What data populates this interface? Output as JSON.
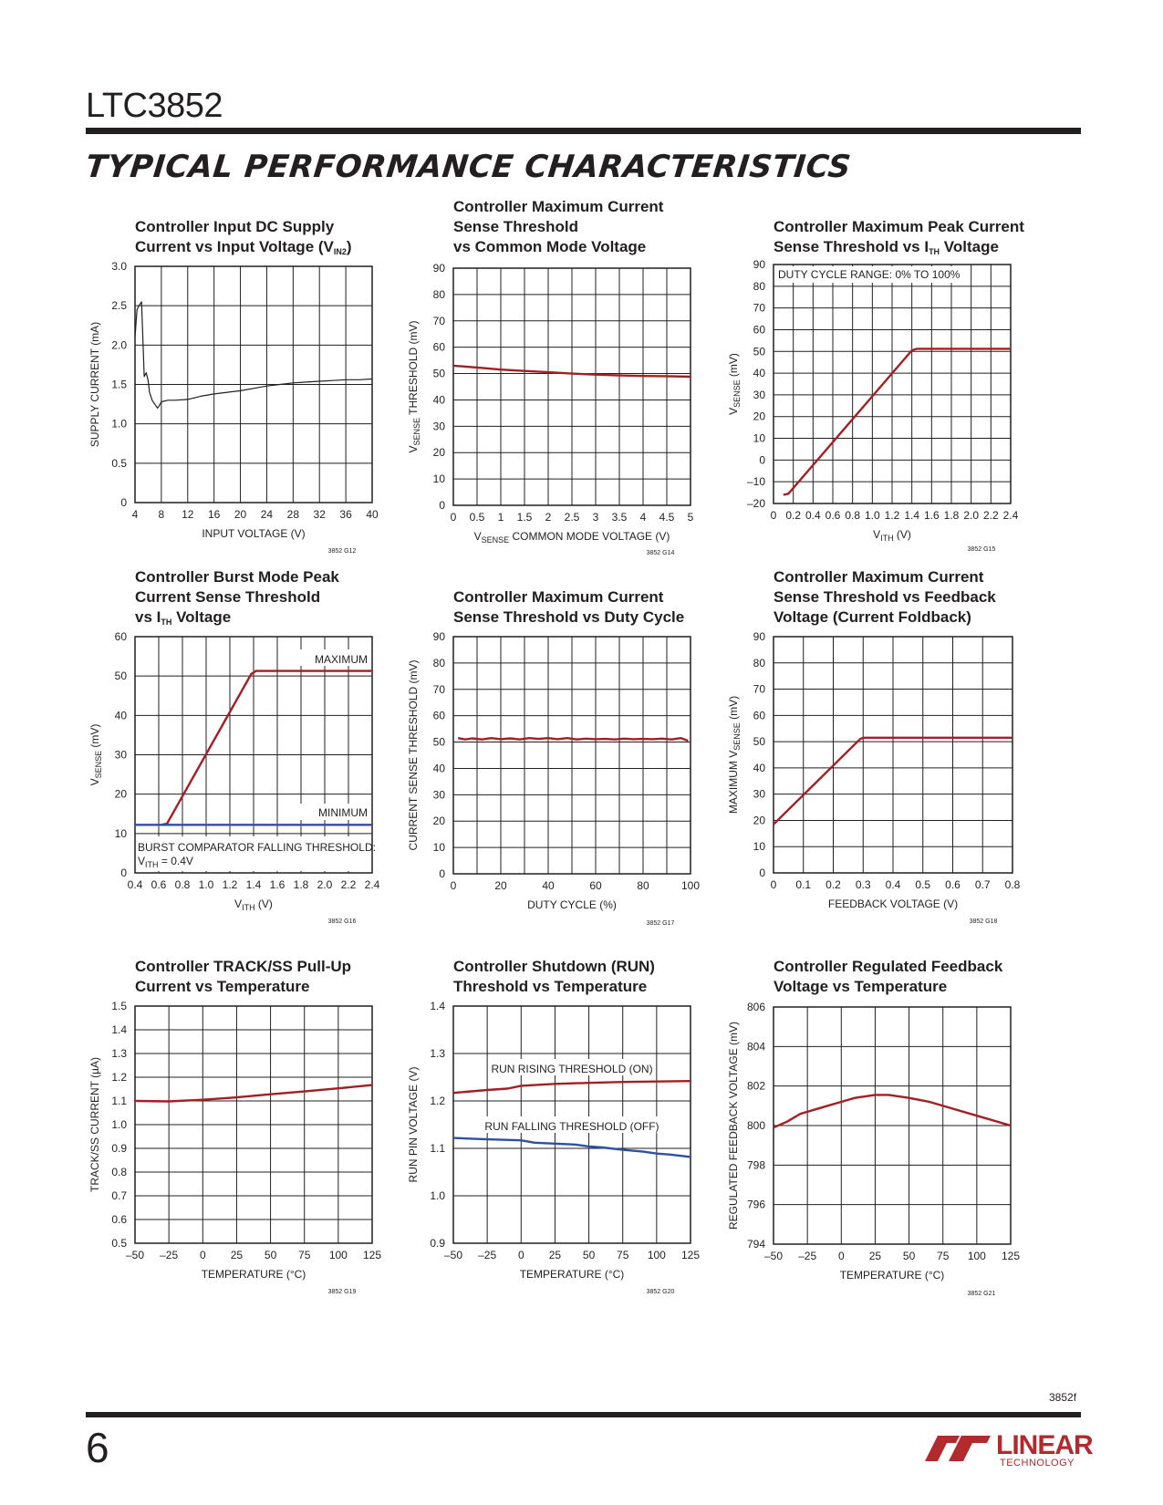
{
  "header": {
    "part_number": "LTC3852",
    "section_title": "TYPICAL PERFORMANCE CHARACTERISTICS"
  },
  "footer": {
    "page_number": "6",
    "doc_id": "3852f",
    "logo_text": "LINEAR",
    "logo_subtext": "TECHNOLOGY"
  },
  "colors": {
    "red": "#a31f24",
    "blue": "#2e4fa3",
    "black": "#231f20",
    "grid": "#231f20"
  },
  "chart_data": [
    {
      "id": "g12",
      "type": "line",
      "title_lines": [
        "Controller Input DC Supply",
        "Current vs Input Voltage (V",
        "IN2",
        ")"
      ],
      "xlabel": "INPUT VOLTAGE (V)",
      "ylabel": "SUPPLY CURRENT (mA)",
      "xlim": [
        4,
        40
      ],
      "ylim": [
        0,
        3.0
      ],
      "xticks": [
        "4",
        "8",
        "12",
        "16",
        "20",
        "24",
        "28",
        "32",
        "36",
        "40"
      ],
      "yticks": [
        "0",
        "0.5",
        "1.0",
        "1.5",
        "2.0",
        "2.5",
        "3.0"
      ],
      "xgrid": 9,
      "ygrid": 6,
      "fig_id": "3852 G12",
      "series": [
        {
          "color": "black",
          "x": [
            4,
            4.3,
            4.6,
            5.0,
            5.4,
            5.7,
            6.0,
            6.2,
            6.6,
            7.0,
            7.4,
            7.6,
            8,
            9,
            10,
            12,
            14,
            16,
            18,
            20,
            22,
            24,
            26,
            28,
            30,
            32,
            34,
            36,
            38,
            40
          ],
          "y": [
            2.1,
            2.45,
            2.5,
            2.55,
            1.6,
            1.65,
            1.55,
            1.4,
            1.3,
            1.25,
            1.2,
            1.22,
            1.28,
            1.3,
            1.3,
            1.31,
            1.35,
            1.38,
            1.4,
            1.42,
            1.45,
            1.48,
            1.5,
            1.52,
            1.53,
            1.54,
            1.55,
            1.56,
            1.56,
            1.57
          ]
        }
      ]
    },
    {
      "id": "g14",
      "type": "line",
      "title_lines": [
        "Controller Maximum Current",
        "Sense Threshold",
        "vs Common Mode Voltage"
      ],
      "xlabel_pre": "V",
      "xlabel_sub": "SENSE",
      "xlabel_post": " COMMON MODE VOLTAGE (V)",
      "ylabel_pre": "V",
      "ylabel_sub": "SENSE",
      "ylabel_post": " THRESHOLD (mV)",
      "xlim": [
        0,
        5
      ],
      "ylim": [
        0,
        90
      ],
      "xticks": [
        "0",
        "0.5",
        "1",
        "1.5",
        "2",
        "2.5",
        "3",
        "3.5",
        "4",
        "4.5",
        "5"
      ],
      "yticks": [
        "0",
        "10",
        "20",
        "30",
        "40",
        "50",
        "60",
        "70",
        "80",
        "90"
      ],
      "xgrid": 10,
      "ygrid": 9,
      "fig_id": "3852 G14",
      "series": [
        {
          "color": "red",
          "x": [
            0,
            0.5,
            1,
            1.5,
            2,
            2.5,
            3,
            3.5,
            4,
            4.5,
            5
          ],
          "y": [
            53,
            52.3,
            51.5,
            51,
            50.5,
            50,
            49.6,
            49.3,
            49.1,
            49,
            48.8
          ]
        }
      ]
    },
    {
      "id": "g15",
      "type": "line",
      "title_lines": [
        "Controller Maximum Peak Current",
        "Sense Threshold vs I",
        "TH",
        " Voltage"
      ],
      "xlabel_pre": "V",
      "xlabel_sub": "ITH",
      "xlabel_post": " (V)",
      "ylabel_pre": "V",
      "ylabel_sub": "SENSE",
      "ylabel_post": " (mV)",
      "xlim": [
        0,
        2.4
      ],
      "ylim": [
        -20,
        90
      ],
      "xticks": [
        "0",
        "0.2",
        "0.4",
        "0.6",
        "0.8",
        "1.0",
        "1.2",
        "1.4",
        "1.6",
        "1.8",
        "2.0",
        "2.2",
        "2.4"
      ],
      "yticks": [
        "–20",
        "–10",
        "0",
        "10",
        "20",
        "30",
        "40",
        "50",
        "60",
        "70",
        "80",
        "90"
      ],
      "xgrid": 12,
      "ygrid": 11,
      "fig_id": "3852 G15",
      "annotation": "DUTY CYCLE RANGE: 0% TO 100%",
      "series": [
        {
          "color": "red",
          "x": [
            0.1,
            0.15,
            1.4,
            1.45,
            2.4
          ],
          "y": [
            -16,
            -15.5,
            50.5,
            51.2,
            51.2
          ]
        }
      ]
    },
    {
      "id": "g16",
      "type": "line",
      "title_lines": [
        "Controller Burst Mode Peak",
        "Current Sense Threshold",
        "vs I",
        "TH",
        " Voltage"
      ],
      "xlabel_pre": "V",
      "xlabel_sub": "ITH",
      "xlabel_post": " (V)",
      "ylabel_pre": "V",
      "ylabel_sub": "SENSE",
      "ylabel_post": " (mV)",
      "xlim": [
        0.4,
        2.4
      ],
      "ylim": [
        0,
        60
      ],
      "xticks": [
        "0.4",
        "0.6",
        "0.8",
        "1.0",
        "1.2",
        "1.4",
        "1.6",
        "1.8",
        "2.0",
        "2.2",
        "2.4"
      ],
      "yticks": [
        "0",
        "10",
        "20",
        "30",
        "40",
        "50",
        "60"
      ],
      "xgrid": 10,
      "ygrid": 6,
      "fig_id": "3852 G16",
      "label_max": "MAXIMUM",
      "label_min": "MINIMUM",
      "annotation_line1": "BURST COMPARATOR FALLING THRESHOLD:",
      "annotation_pre": "V",
      "annotation_sub": "ITH",
      "annotation_post": " = 0.4V",
      "series": [
        {
          "color": "red",
          "x": [
            0.62,
            0.67,
            1.38,
            1.42,
            2.4
          ],
          "y": [
            12.2,
            12.5,
            50.5,
            51.3,
            51.3
          ]
        },
        {
          "color": "blue",
          "x": [
            0.4,
            2.4
          ],
          "y": [
            12.2,
            12.2
          ]
        }
      ]
    },
    {
      "id": "g17",
      "type": "line",
      "title_lines": [
        "Controller Maximum Current",
        "Sense Threshold vs Duty Cycle"
      ],
      "xlabel": "DUTY CYCLE (%)",
      "ylabel": "CURRENT SENSE THRESHOLD (mV)",
      "xlim": [
        0,
        100
      ],
      "ylim": [
        0,
        90
      ],
      "xticks": [
        "0",
        "20",
        "40",
        "60",
        "80",
        "100"
      ],
      "yticks": [
        "0",
        "10",
        "20",
        "30",
        "40",
        "50",
        "60",
        "70",
        "80",
        "90"
      ],
      "xgrid": 10,
      "ygrid": 9,
      "fig_id": "3852 G17",
      "series": [
        {
          "color": "red",
          "x": [
            2,
            5,
            8,
            12,
            16,
            20,
            24,
            28,
            32,
            36,
            40,
            44,
            48,
            52,
            56,
            60,
            64,
            68,
            72,
            76,
            80,
            84,
            88,
            92,
            96,
            99
          ],
          "y": [
            51.5,
            51,
            51.4,
            51,
            51.5,
            51.1,
            51.4,
            51,
            51.5,
            51.2,
            51.5,
            51.1,
            51.5,
            51,
            51.3,
            51.1,
            51.2,
            51,
            51.3,
            51.1,
            51.2,
            51.1,
            51.3,
            51,
            51.5,
            50.5
          ]
        }
      ]
    },
    {
      "id": "g18",
      "type": "line",
      "title_lines": [
        "Controller Maximum Current",
        "Sense Threshold vs Feedback",
        "Voltage (Current Foldback)"
      ],
      "xlabel": "FEEDBACK VOLTAGE (V)",
      "ylabel_pre": "MAXIMUM V",
      "ylabel_sub": "SENSE",
      "ylabel_post": " (mV)",
      "xlim": [
        0,
        0.8
      ],
      "ylim": [
        0,
        90
      ],
      "xticks": [
        "0",
        "0.1",
        "0.2",
        "0.3",
        "0.4",
        "0.5",
        "0.6",
        "0.7",
        "0.8"
      ],
      "yticks": [
        "0",
        "10",
        "20",
        "30",
        "40",
        "50",
        "60",
        "70",
        "80",
        "90"
      ],
      "xgrid": 8,
      "ygrid": 9,
      "fig_id": "3852 G18",
      "series": [
        {
          "color": "red",
          "x": [
            0,
            0.29,
            0.3,
            0.8
          ],
          "y": [
            18.5,
            51,
            51.5,
            51.5
          ]
        }
      ]
    },
    {
      "id": "g19",
      "type": "line",
      "title_lines": [
        "Controller TRACK/SS Pull-Up",
        "Current vs Temperature"
      ],
      "xlabel": "TEMPERATURE (°C)",
      "ylabel": "TRACK/SS CURRENT (µA)",
      "xlim": [
        -50,
        125
      ],
      "ylim": [
        0.5,
        1.5
      ],
      "xticks": [
        "–50",
        "–25",
        "0",
        "25",
        "50",
        "75",
        "100",
        "125"
      ],
      "yticks": [
        "0.5",
        "0.6",
        "0.7",
        "0.8",
        "0.9",
        "1.0",
        "1.1",
        "1.2",
        "1.3",
        "1.4",
        "1.5"
      ],
      "xgrid": 7,
      "ygrid": 10,
      "fig_id": "3852 G19",
      "series": [
        {
          "color": "red",
          "x": [
            -50,
            -25,
            0,
            25,
            50,
            75,
            100,
            125
          ],
          "y": [
            1.1,
            1.098,
            1.105,
            1.115,
            1.128,
            1.14,
            1.153,
            1.167
          ]
        }
      ]
    },
    {
      "id": "g20",
      "type": "line",
      "title_lines": [
        "Controller Shutdown (RUN)",
        "Threshold vs Temperature"
      ],
      "xlabel": "TEMPERATURE (°C)",
      "ylabel": "RUN PIN VOLTAGE (V)",
      "xlim": [
        -50,
        125
      ],
      "ylim": [
        0.9,
        1.4
      ],
      "xticks": [
        "–50",
        "–25",
        "0",
        "25",
        "50",
        "75",
        "100",
        "125"
      ],
      "yticks": [
        "0.9",
        "1.0",
        "1.1",
        "1.2",
        "1.3",
        "1.4"
      ],
      "xgrid": 7,
      "ygrid": 5,
      "fig_id": "3852 G20",
      "label_rising": "RUN RISING THRESHOLD (ON)",
      "label_falling": "RUN FALLING THRESHOLD (OFF)",
      "series": [
        {
          "color": "red",
          "x": [
            -50,
            -25,
            -10,
            0,
            25,
            50,
            75,
            100,
            125
          ],
          "y": [
            1.217,
            1.223,
            1.226,
            1.232,
            1.236,
            1.238,
            1.24,
            1.241,
            1.242
          ]
        },
        {
          "color": "blue",
          "x": [
            -50,
            -25,
            0,
            10,
            25,
            40,
            50,
            60,
            75,
            90,
            100,
            110,
            125
          ],
          "y": [
            1.122,
            1.119,
            1.117,
            1.112,
            1.11,
            1.108,
            1.104,
            1.102,
            1.097,
            1.093,
            1.089,
            1.087,
            1.082
          ]
        }
      ]
    },
    {
      "id": "g21",
      "type": "line",
      "title_lines": [
        "Controller Regulated Feedback",
        "Voltage vs Temperature"
      ],
      "xlabel": "TEMPERATURE (°C)",
      "ylabel": "REGULATED FEEDBACK VOLTAGE (mV)",
      "xlim": [
        -50,
        125
      ],
      "ylim": [
        794,
        806
      ],
      "xticks": [
        "–50",
        "–25",
        "0",
        "25",
        "50",
        "75",
        "100",
        "125"
      ],
      "yticks": [
        "794",
        "796",
        "798",
        "800",
        "802",
        "804",
        "806"
      ],
      "xgrid": 7,
      "ygrid": 6,
      "fig_id": "3852 G21",
      "series": [
        {
          "color": "red",
          "x": [
            -50,
            -40,
            -30,
            -20,
            -10,
            0,
            10,
            25,
            35,
            50,
            65,
            80,
            100,
            125
          ],
          "y": [
            799.9,
            800.2,
            800.6,
            800.8,
            801.0,
            801.2,
            801.4,
            801.55,
            801.55,
            801.4,
            801.2,
            800.9,
            800.5,
            800.0
          ]
        }
      ]
    }
  ]
}
